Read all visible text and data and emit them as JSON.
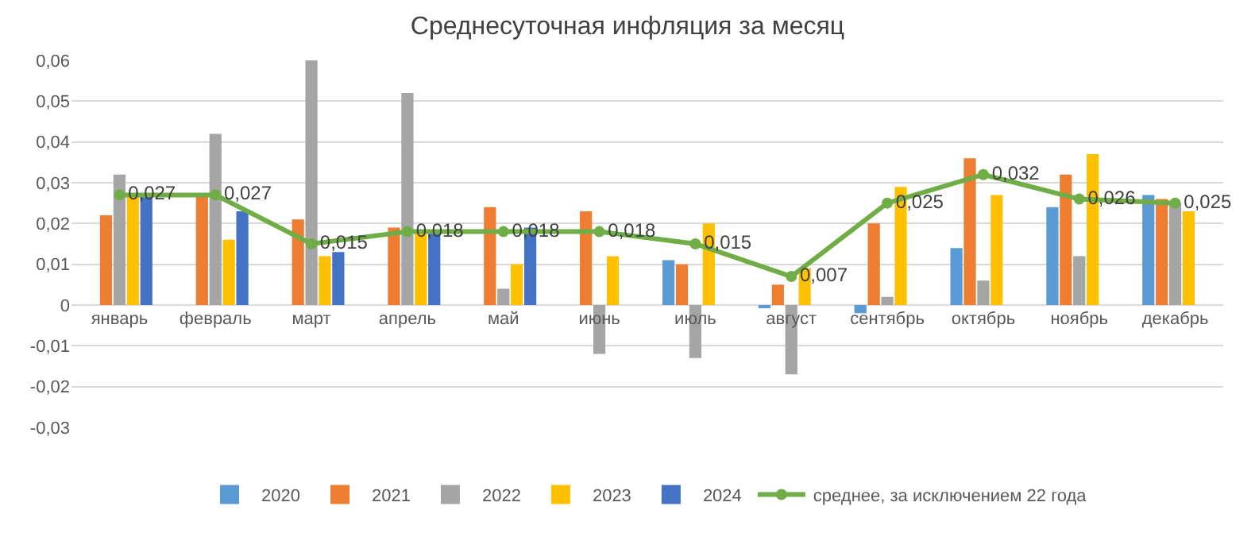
{
  "chart_data": {
    "type": "bar",
    "title": "Среднесуточная инфляция за месяц",
    "categories": [
      "январь",
      "февраль",
      "март",
      "апрель",
      "май",
      "июнь",
      "июль",
      "август",
      "сентябрь",
      "октябрь",
      "ноябрь",
      "декабрь"
    ],
    "series": [
      {
        "name": "2020",
        "color": "#5b9bd5",
        "values": [
          null,
          null,
          null,
          null,
          null,
          null,
          0.011,
          -0.0005,
          -0.002,
          0.014,
          0.024,
          0.027
        ]
      },
      {
        "name": "2021",
        "color": "#ed7d31",
        "values": [
          0.022,
          0.027,
          0.021,
          0.019,
          0.024,
          0.023,
          0.01,
          0.005,
          0.02,
          0.036,
          0.032,
          0.026
        ]
      },
      {
        "name": "2022",
        "color": "#a5a5a5",
        "values": [
          0.032,
          0.042,
          0.06,
          0.052,
          0.004,
          -0.012,
          -0.013,
          -0.017,
          0.002,
          0.006,
          0.012,
          0.025
        ]
      },
      {
        "name": "2023",
        "color": "#ffc000",
        "values": [
          0.027,
          0.016,
          0.012,
          0.018,
          0.01,
          0.012,
          0.02,
          0.009,
          0.029,
          0.027,
          0.037,
          0.023
        ]
      },
      {
        "name": "2024",
        "color": "#4472c4",
        "values": [
          0.027,
          0.023,
          0.013,
          0.018,
          0.019,
          null,
          null,
          null,
          null,
          null,
          null,
          null
        ]
      },
      {
        "name": "среднее, за исключением 22 года",
        "type": "line",
        "color": "#70ad47",
        "marker": "circle",
        "values": [
          0.027,
          0.027,
          0.015,
          0.018,
          0.018,
          0.018,
          0.015,
          0.007,
          0.025,
          0.032,
          0.026,
          0.025
        ],
        "value_labels": [
          "0,027",
          "0,027",
          "0,015",
          "0,018",
          "0,018",
          "0,018",
          "0,015",
          "0,007",
          "0,025",
          "0,032",
          "0,026",
          "0,025"
        ]
      }
    ],
    "ylim": [
      -0.03,
      0.06
    ],
    "yticks": [
      {
        "value": -0.03,
        "label": "-0,03"
      },
      {
        "value": -0.02,
        "label": "-0,02"
      },
      {
        "value": -0.01,
        "label": "-0,01"
      },
      0,
      {
        "value": 0.01,
        "label": "0,01"
      },
      {
        "value": 0.02,
        "label": "0,02"
      },
      {
        "value": 0.03,
        "label": "0,03"
      },
      {
        "value": 0.04,
        "label": "0,04"
      },
      {
        "value": 0.05,
        "label": "0,05"
      },
      {
        "value": 0.06,
        "label": "0,06"
      }
    ],
    "grid": "y",
    "legend": "bottom"
  }
}
